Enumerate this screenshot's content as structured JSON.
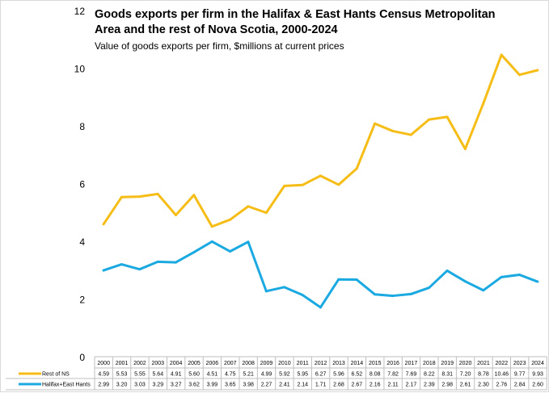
{
  "chart_data": {
    "type": "line",
    "title": "Goods exports per firm in the Halifax & East Hants Census Metropolitan Area and the rest of Nova Scotia, 2000-2024",
    "subtitle": "Value of goods exports per firm, $millions at current prices",
    "xlabel": "",
    "ylabel": "",
    "ylim": [
      0,
      12
    ],
    "yticks": [
      "0",
      "2",
      "4",
      "6",
      "8",
      "10",
      "12"
    ],
    "categories": [
      "2000",
      "2001",
      "2002",
      "2003",
      "2004",
      "2005",
      "2006",
      "2007",
      "2008",
      "2009",
      "2010",
      "2011",
      "2012",
      "2013",
      "2014",
      "2015",
      "2016",
      "2017",
      "2018",
      "2019",
      "2020",
      "2021",
      "2022",
      "2023",
      "2024"
    ],
    "series": [
      {
        "name": "Rest of NS",
        "color": "#f5bd16",
        "values": [
          4.59,
          5.53,
          5.55,
          5.64,
          4.91,
          5.6,
          4.51,
          4.75,
          5.21,
          4.99,
          5.92,
          5.95,
          6.27,
          5.96,
          6.52,
          8.08,
          7.82,
          7.69,
          8.22,
          8.31,
          7.2,
          8.78,
          10.46,
          9.77,
          9.93
        ],
        "labels": [
          "4.59",
          "5.53",
          "5.55",
          "5.64",
          "4.91",
          "5.60",
          "4.51",
          "4.75",
          "5.21",
          "4.99",
          "5.92",
          "5.95",
          "6.27",
          "5.96",
          "6.52",
          "8.08",
          "7.82",
          "7.69",
          "8.22",
          "8.31",
          "7.20",
          "8.78",
          "10.46",
          "9.77",
          "9.93"
        ]
      },
      {
        "name": "Halifax+East Hants",
        "color": "#1aa9e1",
        "values": [
          2.99,
          3.2,
          3.03,
          3.29,
          3.27,
          3.62,
          3.99,
          3.65,
          3.98,
          2.27,
          2.41,
          2.14,
          1.71,
          2.68,
          2.67,
          2.16,
          2.11,
          2.17,
          2.39,
          2.98,
          2.61,
          2.3,
          2.76,
          2.84,
          2.6
        ],
        "labels": [
          "2.99",
          "3.20",
          "3.03",
          "3.29",
          "3.27",
          "3.62",
          "3.99",
          "3.65",
          "3.98",
          "2.27",
          "2.41",
          "2.14",
          "1.71",
          "2.68",
          "2.67",
          "2.16",
          "2.11",
          "2.17",
          "2.39",
          "2.98",
          "2.61",
          "2.30",
          "2.76",
          "2.84",
          "2.60"
        ]
      }
    ],
    "legend": "data-table-bottom",
    "grid": false
  }
}
